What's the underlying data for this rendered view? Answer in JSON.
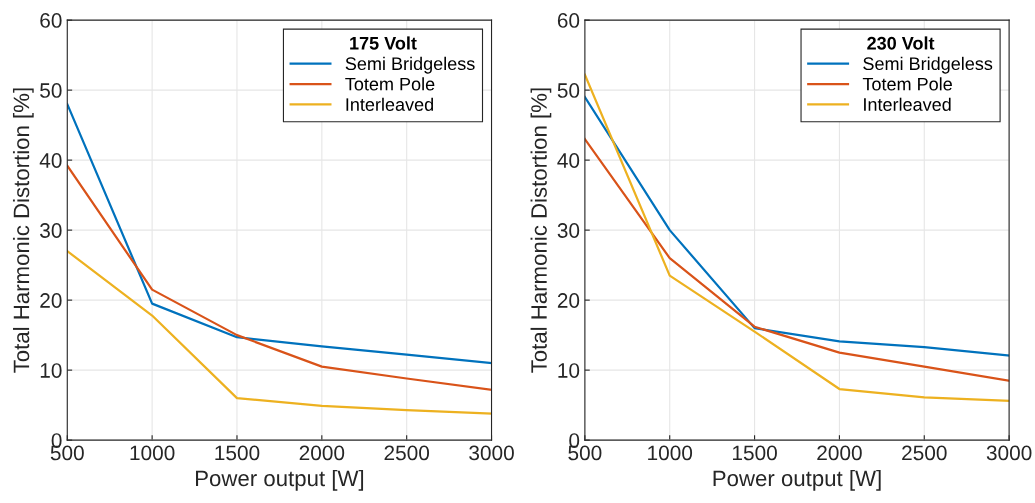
{
  "chart_data": [
    {
      "type": "line",
      "x": [
        500,
        1000,
        1500,
        2000,
        2500,
        3000
      ],
      "xlabel": "Power output [W]",
      "ylabel": "Total Harmonic Distortion [%]",
      "legend_title": "175 Volt",
      "legend": "top right",
      "grid": true,
      "xlim": [
        500,
        3000
      ],
      "xticks": [
        500,
        1000,
        1500,
        2000,
        2500,
        3000
      ],
      "ylim": [
        0,
        60
      ],
      "yticks": [
        0,
        10,
        20,
        30,
        40,
        50,
        60
      ],
      "series": [
        {
          "name": "Semi Bridgeless",
          "color": "#0072bd",
          "values": [
            48,
            19.5,
            14.7,
            13.4,
            12.2,
            11
          ]
        },
        {
          "name": "Totem Pole",
          "color": "#d95319",
          "values": [
            39.2,
            21.5,
            15,
            10.5,
            8.8,
            7.2
          ]
        },
        {
          "name": "Interleaved",
          "color": "#edb120",
          "values": [
            27,
            17.8,
            6,
            4.9,
            4.3,
            3.8
          ]
        }
      ]
    },
    {
      "type": "line",
      "x": [
        500,
        1000,
        1500,
        2000,
        2500,
        3000
      ],
      "xlabel": "Power output [W]",
      "ylabel": "Total Harmonic Distortion [%]",
      "legend_title": "230 Volt",
      "legend": "top right",
      "grid": true,
      "xlim": [
        500,
        3000
      ],
      "xticks": [
        500,
        1000,
        1500,
        2000,
        2500,
        3000
      ],
      "ylim": [
        0,
        60
      ],
      "yticks": [
        0,
        10,
        20,
        30,
        40,
        50,
        60
      ],
      "series": [
        {
          "name": "Semi Bridgeless",
          "color": "#0072bd",
          "values": [
            49,
            30,
            16,
            14.1,
            13.3,
            12.1
          ]
        },
        {
          "name": "Totem Pole",
          "color": "#d95319",
          "values": [
            43,
            26,
            16.2,
            12.5,
            10.5,
            8.5
          ]
        },
        {
          "name": "Interleaved",
          "color": "#edb120",
          "values": [
            52.2,
            23.5,
            15.5,
            7.3,
            6.1,
            5.6
          ]
        }
      ]
    }
  ]
}
